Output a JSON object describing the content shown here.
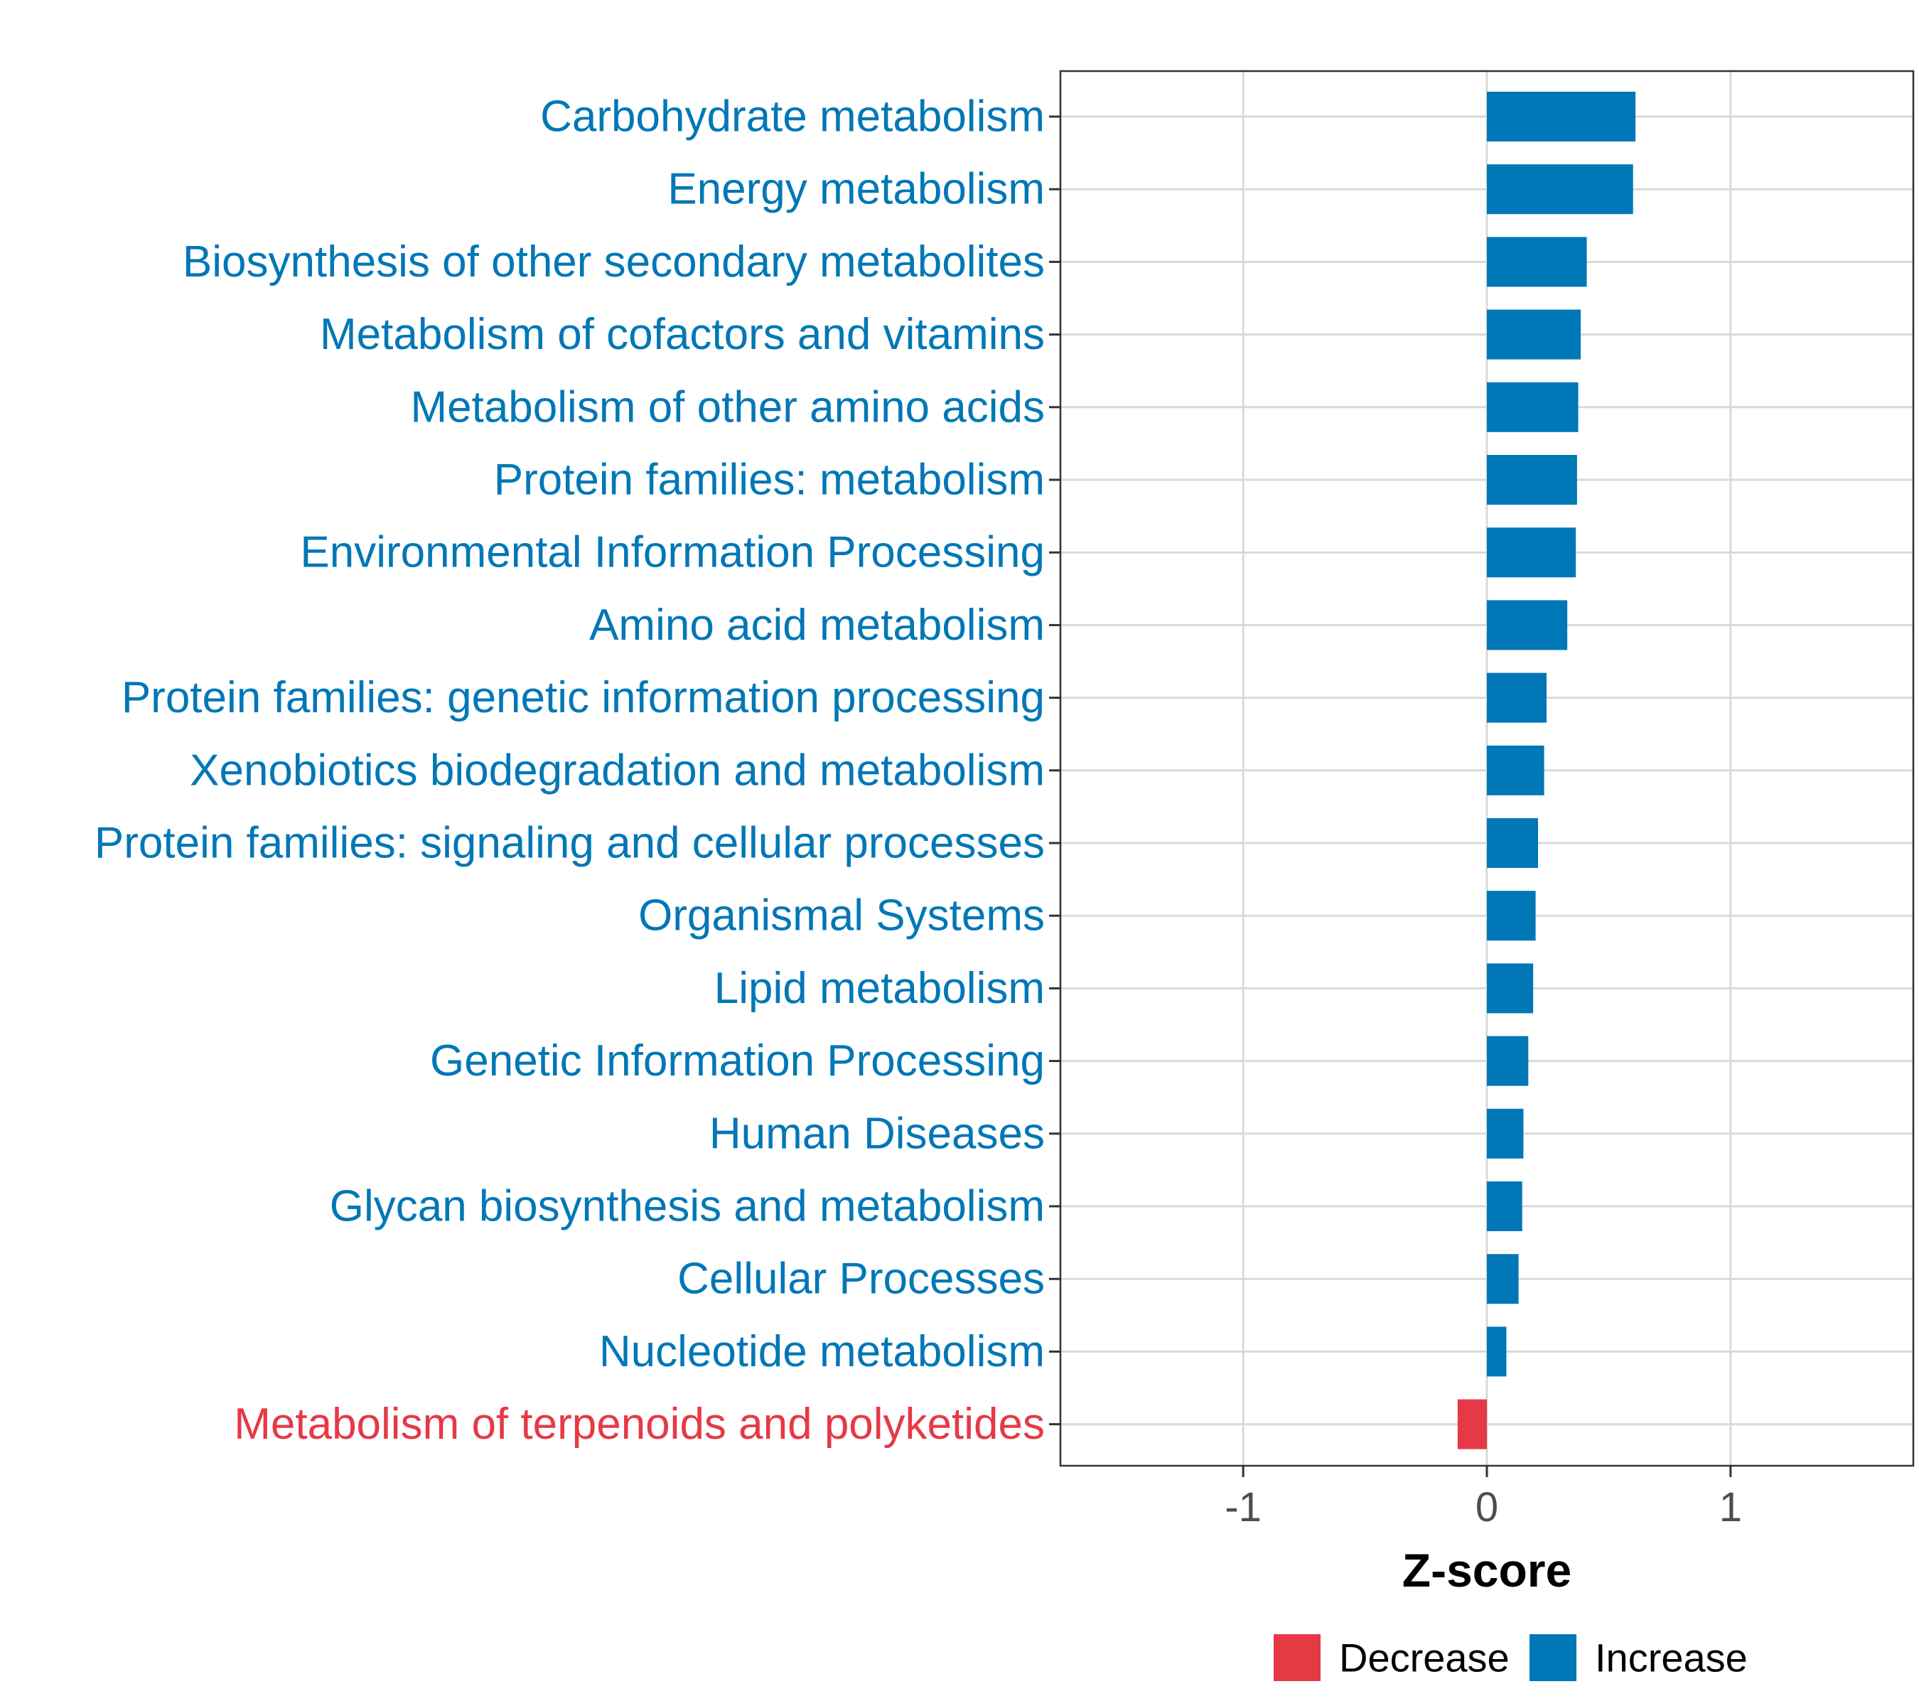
{
  "colors": {
    "increase": "#0077b6",
    "decrease": "#e63946",
    "grid": "#d9d9d9",
    "panel_border": "#333333",
    "tick_text": "#4d4d4d"
  },
  "chart_data": {
    "type": "bar",
    "orientation": "horizontal",
    "title": "",
    "xlabel": "Z-score",
    "ylabel": "",
    "xlim": [
      -1.75,
      1.75
    ],
    "xticks": [
      -1,
      0,
      1
    ],
    "xtick_labels": [
      "-1",
      "0",
      "1"
    ],
    "grid": true,
    "legend_position": "bottom",
    "categories": [
      "Carbohydrate metabolism",
      "Energy metabolism",
      "Biosynthesis of other secondary metabolites",
      "Metabolism of cofactors and vitamins",
      "Metabolism of other amino acids",
      "Protein families: metabolism",
      "Environmental Information Processing",
      "Amino acid metabolism",
      "Protein families: genetic information processing",
      "Xenobiotics biodegradation and metabolism",
      "Protein families: signaling and cellular processes",
      "Organismal Systems",
      "Lipid metabolism",
      "Genetic Information Processing",
      "Human Diseases",
      "Glycan biosynthesis and metabolism",
      "Cellular Processes",
      "Nucleotide metabolism",
      "Metabolism of terpenoids and polyketides"
    ],
    "values": [
      0.61,
      0.6,
      0.41,
      0.385,
      0.375,
      0.37,
      0.365,
      0.33,
      0.245,
      0.235,
      0.21,
      0.2,
      0.19,
      0.17,
      0.15,
      0.145,
      0.13,
      0.08,
      -0.12
    ],
    "groups": [
      "Increase",
      "Increase",
      "Increase",
      "Increase",
      "Increase",
      "Increase",
      "Increase",
      "Increase",
      "Increase",
      "Increase",
      "Increase",
      "Increase",
      "Increase",
      "Increase",
      "Increase",
      "Increase",
      "Increase",
      "Increase",
      "Decrease"
    ],
    "legend": [
      {
        "label": "Decrease",
        "color": "#e63946"
      },
      {
        "label": "Increase",
        "color": "#0077b6"
      }
    ]
  }
}
